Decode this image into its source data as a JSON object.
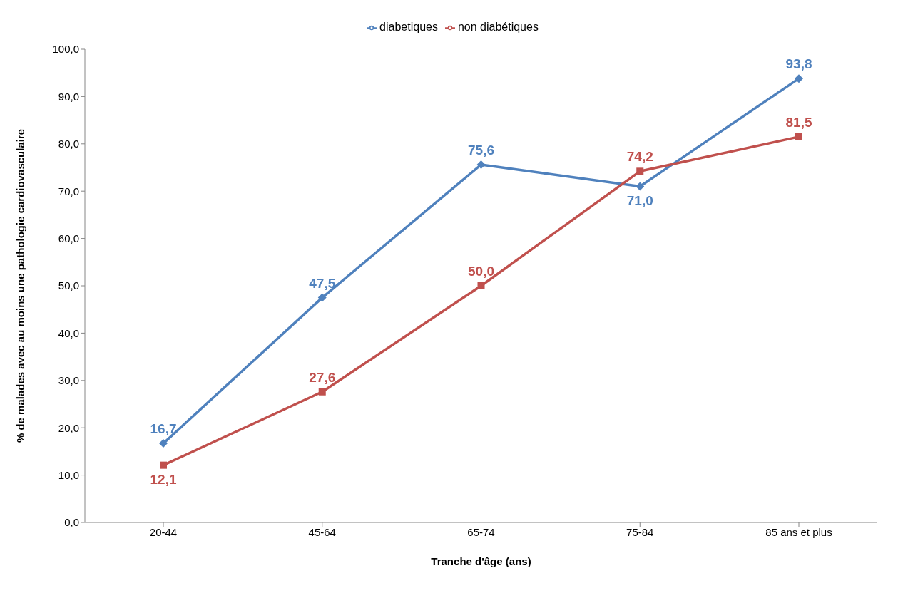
{
  "chart_data": {
    "type": "line",
    "xlabel": "Tranche d'âge (ans)",
    "ylabel": "% de malades avec au moins une pathologie cardiovasculaire",
    "categories": [
      "20-44",
      "45-64",
      "65-74",
      "75-84",
      "85 ans et plus"
    ],
    "series": [
      {
        "name": "diabetiques",
        "color": "#4f81bd",
        "marker": "diamond",
        "values": [
          16.7,
          47.5,
          75.6,
          71.0,
          93.8
        ],
        "value_labels": [
          "16,7",
          "47,5",
          "75,6",
          "71,0",
          "93,8"
        ]
      },
      {
        "name": "non diabétiques",
        "color": "#c0504d",
        "marker": "square",
        "values": [
          12.1,
          27.6,
          50.0,
          74.2,
          81.5
        ],
        "value_labels": [
          "12,1",
          "27,6",
          "50,0",
          "74,2",
          "81,5"
        ]
      }
    ],
    "ylim": [
      0,
      100
    ],
    "yticks": [
      {
        "value": 0,
        "label": "0,0"
      },
      {
        "value": 10,
        "label": "10,0"
      },
      {
        "value": 20,
        "label": "20,0"
      },
      {
        "value": 30,
        "label": "30,0"
      },
      {
        "value": 40,
        "label": "40,0"
      },
      {
        "value": 50,
        "label": "50,0"
      },
      {
        "value": 60,
        "label": "60,0"
      },
      {
        "value": 70,
        "label": "70,0"
      },
      {
        "value": 80,
        "label": "80,0"
      },
      {
        "value": 90,
        "label": "90,0"
      },
      {
        "value": 100,
        "label": "100,0"
      }
    ],
    "grid": false,
    "legend": "top",
    "line_style": "solid"
  }
}
